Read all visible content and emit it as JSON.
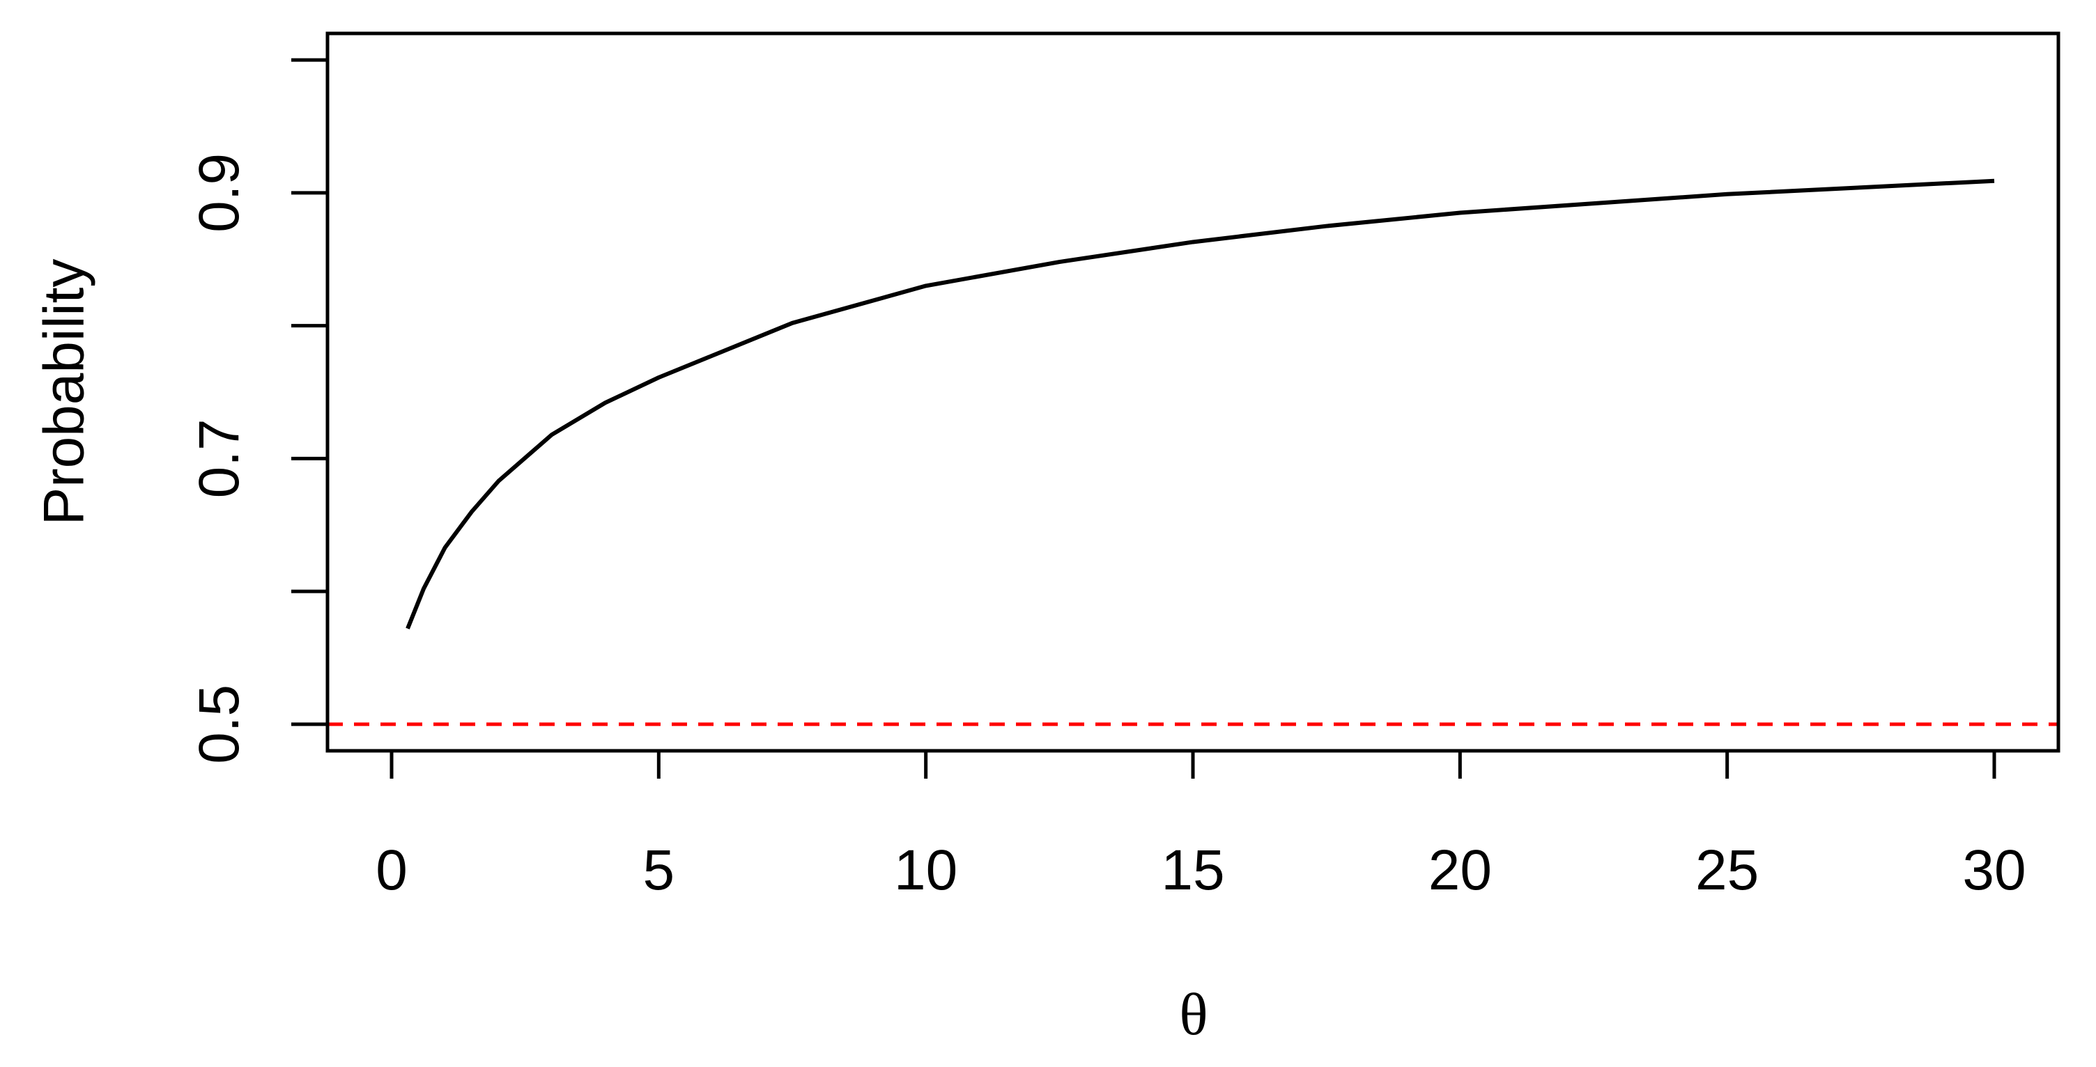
{
  "chart_data": {
    "type": "line",
    "x_label": "θ",
    "y_label": "Probability",
    "x": [
      0.3,
      0.6,
      1,
      1.5,
      2,
      3,
      4,
      5,
      7.5,
      10,
      12.5,
      15,
      17.5,
      20,
      22.5,
      25,
      27.5,
      30
    ],
    "series": [
      {
        "color": "#000000",
        "values": [
          0.572,
          0.602,
          0.633,
          0.66,
          0.683,
          0.718,
          0.742,
          0.761,
          0.802,
          0.83,
          0.848,
          0.863,
          0.875,
          0.885,
          0.892,
          0.899,
          0.904,
          0.909
        ]
      }
    ],
    "reference_line": {
      "y": 0.5,
      "color": "#ff0000",
      "dashed": true
    },
    "xlim": [
      -1.2,
      31.2
    ],
    "xticks": [
      0,
      5,
      10,
      15,
      20,
      25,
      30
    ],
    "ylim": [
      0.48,
      1.02
    ],
    "yticks": [
      0.5,
      {
        "value": 0.6,
        "label": null
      },
      0.7,
      {
        "value": 0.8,
        "label": null
      },
      0.9,
      {
        "value": 1.0,
        "label": null
      }
    ]
  }
}
